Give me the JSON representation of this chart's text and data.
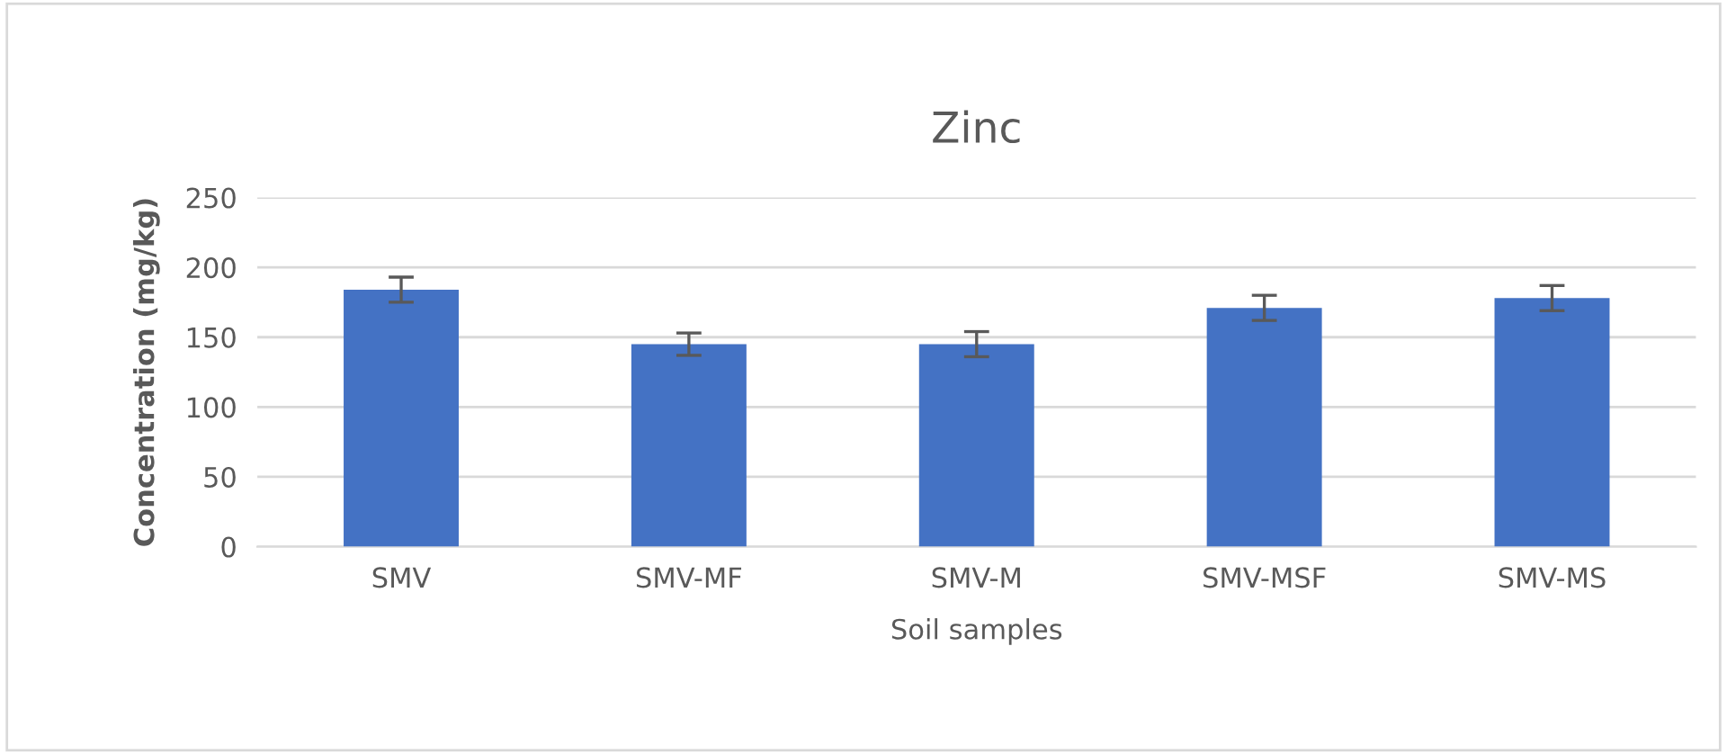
{
  "chart_data": {
    "type": "bar",
    "title": "Zinc",
    "xlabel": "Soil samples",
    "ylabel": "Concentration (mg/kg)",
    "categories": [
      "SMV",
      "SMV-MF",
      "SMV-M",
      "SMV-MSF",
      "SMV-MS"
    ],
    "values": [
      184,
      145,
      145,
      171,
      178
    ],
    "errors": [
      9,
      8,
      9,
      9,
      9
    ],
    "color": "#4472c4",
    "ylim": [
      0,
      250
    ],
    "yticks": [
      0,
      50,
      100,
      150,
      200,
      250
    ],
    "grid": "y"
  }
}
